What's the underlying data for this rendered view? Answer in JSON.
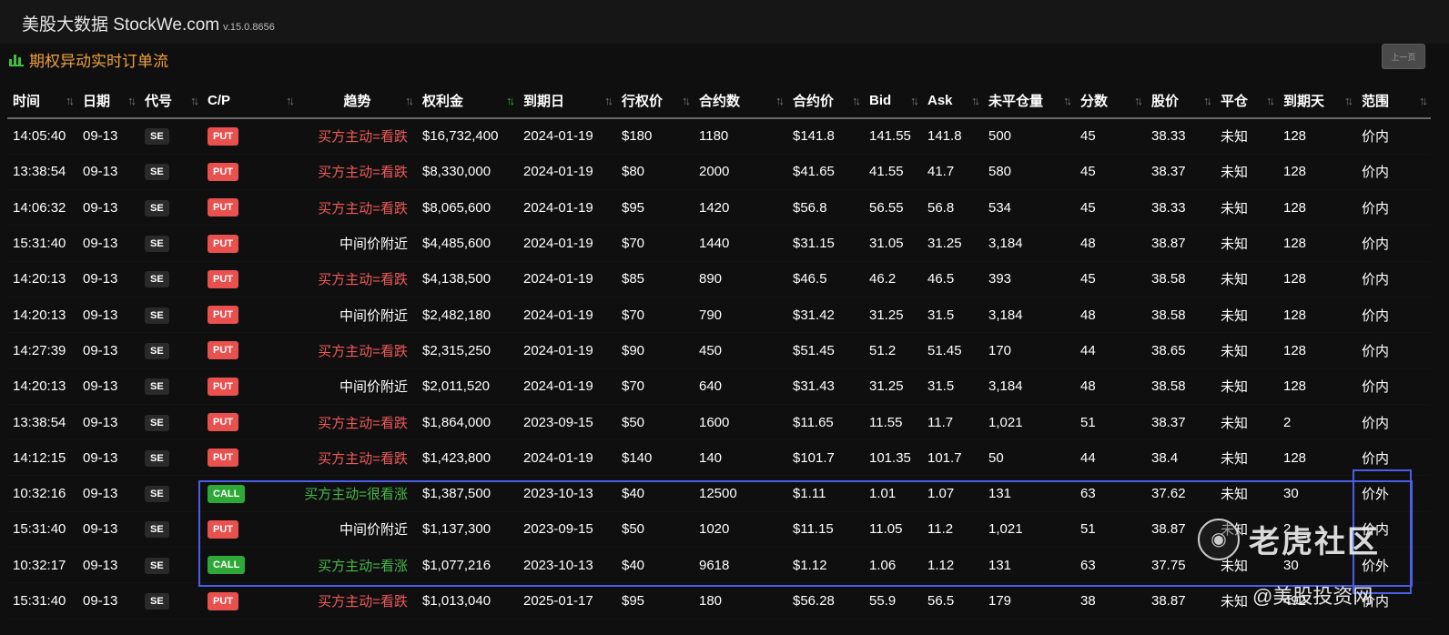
{
  "app": {
    "title": "美股大数据 StockWe.com",
    "version": "v.15.0.8656"
  },
  "panel": {
    "title": "期权异动实时订单流",
    "prev_button": "上一页"
  },
  "columns": [
    {
      "key": "time",
      "label": "时间"
    },
    {
      "key": "date",
      "label": "日期"
    },
    {
      "key": "symbol",
      "label": "代号"
    },
    {
      "key": "cp",
      "label": "C/P"
    },
    {
      "key": "trend",
      "label": "趋势"
    },
    {
      "key": "premium",
      "label": "权利金",
      "sorted": true
    },
    {
      "key": "expiry",
      "label": "到期日"
    },
    {
      "key": "strike",
      "label": "行权价"
    },
    {
      "key": "contracts",
      "label": "合约数"
    },
    {
      "key": "price",
      "label": "合约价"
    },
    {
      "key": "bid",
      "label": "Bid"
    },
    {
      "key": "ask",
      "label": "Ask"
    },
    {
      "key": "oi",
      "label": "未平仓量"
    },
    {
      "key": "score",
      "label": "分数"
    },
    {
      "key": "stock",
      "label": "股价"
    },
    {
      "key": "close",
      "label": "平仓"
    },
    {
      "key": "dte",
      "label": "到期天"
    },
    {
      "key": "range",
      "label": "范围"
    }
  ],
  "rows": [
    {
      "time": "14:05:40",
      "date": "09-13",
      "symbol": "SE",
      "cp": "PUT",
      "trend": "买方主动=看跌",
      "trend_type": "bear",
      "premium": "$16,732,400",
      "expiry": "2024-01-19",
      "strike": "$180",
      "contracts": "1180",
      "price": "$141.8",
      "bid": "141.55",
      "ask": "141.8",
      "oi": "500",
      "score": "45",
      "stock": "38.33",
      "close": "未知",
      "dte": "128",
      "range": "价内"
    },
    {
      "time": "13:38:54",
      "date": "09-13",
      "symbol": "SE",
      "cp": "PUT",
      "trend": "买方主动=看跌",
      "trend_type": "bear",
      "premium": "$8,330,000",
      "expiry": "2024-01-19",
      "strike": "$80",
      "contracts": "2000",
      "price": "$41.65",
      "bid": "41.55",
      "ask": "41.7",
      "oi": "580",
      "score": "45",
      "stock": "38.37",
      "close": "未知",
      "dte": "128",
      "range": "价内"
    },
    {
      "time": "14:06:32",
      "date": "09-13",
      "symbol": "SE",
      "cp": "PUT",
      "trend": "买方主动=看跌",
      "trend_type": "bear",
      "premium": "$8,065,600",
      "expiry": "2024-01-19",
      "strike": "$95",
      "contracts": "1420",
      "price": "$56.8",
      "bid": "56.55",
      "ask": "56.8",
      "oi": "534",
      "score": "45",
      "stock": "38.33",
      "close": "未知",
      "dte": "128",
      "range": "价内"
    },
    {
      "time": "15:31:40",
      "date": "09-13",
      "symbol": "SE",
      "cp": "PUT",
      "trend": "中间价附近",
      "trend_type": "mid",
      "premium": "$4,485,600",
      "expiry": "2024-01-19",
      "strike": "$70",
      "contracts": "1440",
      "price": "$31.15",
      "bid": "31.05",
      "ask": "31.25",
      "oi": "3,184",
      "score": "48",
      "stock": "38.87",
      "close": "未知",
      "dte": "128",
      "range": "价内"
    },
    {
      "time": "14:20:13",
      "date": "09-13",
      "symbol": "SE",
      "cp": "PUT",
      "trend": "买方主动=看跌",
      "trend_type": "bear",
      "premium": "$4,138,500",
      "expiry": "2024-01-19",
      "strike": "$85",
      "contracts": "890",
      "price": "$46.5",
      "bid": "46.2",
      "ask": "46.5",
      "oi": "393",
      "score": "45",
      "stock": "38.58",
      "close": "未知",
      "dte": "128",
      "range": "价内"
    },
    {
      "time": "14:20:13",
      "date": "09-13",
      "symbol": "SE",
      "cp": "PUT",
      "trend": "中间价附近",
      "trend_type": "mid",
      "premium": "$2,482,180",
      "expiry": "2024-01-19",
      "strike": "$70",
      "contracts": "790",
      "price": "$31.42",
      "bid": "31.25",
      "ask": "31.5",
      "oi": "3,184",
      "score": "48",
      "stock": "38.58",
      "close": "未知",
      "dte": "128",
      "range": "价内"
    },
    {
      "time": "14:27:39",
      "date": "09-13",
      "symbol": "SE",
      "cp": "PUT",
      "trend": "买方主动=看跌",
      "trend_type": "bear",
      "premium": "$2,315,250",
      "expiry": "2024-01-19",
      "strike": "$90",
      "contracts": "450",
      "price": "$51.45",
      "bid": "51.2",
      "ask": "51.45",
      "oi": "170",
      "score": "44",
      "stock": "38.65",
      "close": "未知",
      "dte": "128",
      "range": "价内"
    },
    {
      "time": "14:20:13",
      "date": "09-13",
      "symbol": "SE",
      "cp": "PUT",
      "trend": "中间价附近",
      "trend_type": "mid",
      "premium": "$2,011,520",
      "expiry": "2024-01-19",
      "strike": "$70",
      "contracts": "640",
      "price": "$31.43",
      "bid": "31.25",
      "ask": "31.5",
      "oi": "3,184",
      "score": "48",
      "stock": "38.58",
      "close": "未知",
      "dte": "128",
      "range": "价内"
    },
    {
      "time": "13:38:54",
      "date": "09-13",
      "symbol": "SE",
      "cp": "PUT",
      "trend": "买方主动=看跌",
      "trend_type": "bear",
      "premium": "$1,864,000",
      "expiry": "2023-09-15",
      "strike": "$50",
      "contracts": "1600",
      "price": "$11.65",
      "bid": "11.55",
      "ask": "11.7",
      "oi": "1,021",
      "score": "51",
      "stock": "38.37",
      "close": "未知",
      "dte": "2",
      "range": "价内"
    },
    {
      "time": "14:12:15",
      "date": "09-13",
      "symbol": "SE",
      "cp": "PUT",
      "trend": "买方主动=看跌",
      "trend_type": "bear",
      "premium": "$1,423,800",
      "expiry": "2024-01-19",
      "strike": "$140",
      "contracts": "140",
      "price": "$101.7",
      "bid": "101.35",
      "ask": "101.7",
      "oi": "50",
      "score": "44",
      "stock": "38.4",
      "close": "未知",
      "dte": "128",
      "range": "价内"
    },
    {
      "time": "10:32:16",
      "date": "09-13",
      "symbol": "SE",
      "cp": "CALL",
      "trend": "买方主动=很看涨",
      "trend_type": "bull",
      "premium": "$1,387,500",
      "expiry": "2023-10-13",
      "strike": "$40",
      "contracts": "12500",
      "price": "$1.11",
      "bid": "1.01",
      "ask": "1.07",
      "oi": "131",
      "score": "63",
      "stock": "37.62",
      "close": "未知",
      "dte": "30",
      "range": "价外"
    },
    {
      "time": "15:31:40",
      "date": "09-13",
      "symbol": "SE",
      "cp": "PUT",
      "trend": "中间价附近",
      "trend_type": "mid",
      "premium": "$1,137,300",
      "expiry": "2023-09-15",
      "strike": "$50",
      "contracts": "1020",
      "price": "$11.15",
      "bid": "11.05",
      "ask": "11.2",
      "oi": "1,021",
      "score": "51",
      "stock": "38.87",
      "close": "未知",
      "dte": "2",
      "range": "价内"
    },
    {
      "time": "10:32:17",
      "date": "09-13",
      "symbol": "SE",
      "cp": "CALL",
      "trend": "买方主动=看涨",
      "trend_type": "bull",
      "premium": "$1,077,216",
      "expiry": "2023-10-13",
      "strike": "$40",
      "contracts": "9618",
      "price": "$1.12",
      "bid": "1.06",
      "ask": "1.12",
      "oi": "131",
      "score": "63",
      "stock": "37.75",
      "close": "未知",
      "dte": "30",
      "range": "价外"
    },
    {
      "time": "15:31:40",
      "date": "09-13",
      "symbol": "SE",
      "cp": "PUT",
      "trend": "买方主动=看跌",
      "trend_type": "bear",
      "premium": "$1,013,040",
      "expiry": "2025-01-17",
      "strike": "$95",
      "contracts": "180",
      "price": "$56.28",
      "bid": "55.9",
      "ask": "56.5",
      "oi": "179",
      "score": "38",
      "stock": "38.87",
      "close": "未知",
      "dte": "492",
      "range": "价内"
    }
  ],
  "watermark": {
    "brand": "老虎社区",
    "handle": "@美股投资网"
  },
  "colors": {
    "bear": "#ef5a5a",
    "bull": "#46b946",
    "put_badge": "#e8514e",
    "call_badge": "#2ea836",
    "highlight": "#4b5ee8",
    "panel_title": "#f0a03c"
  }
}
